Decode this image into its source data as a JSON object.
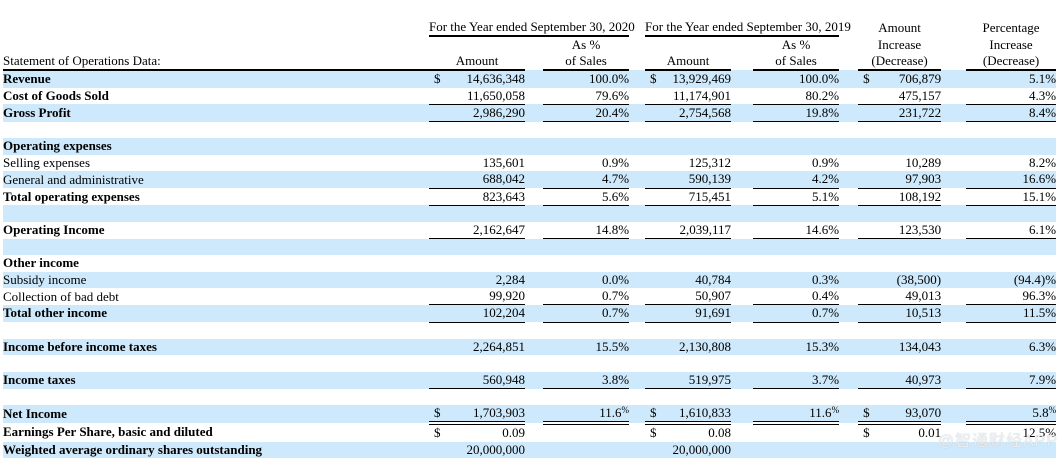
{
  "colors": {
    "stripe_blue": "#cde9fb",
    "text": "#000000",
    "rule": "#000000",
    "watermark_text_color": "#eceff1"
  },
  "watermark": "@智通财经APP",
  "header": {
    "label_header": "Statement of Operations Data:",
    "group_2020": "For the Year ended\nSeptember 30, 2020",
    "group_2019": "For the Year ended\nSeptember 30, 2019",
    "sub_amount": "Amount",
    "sub_as_pct": "As %",
    "sub_of_sales": "of Sales",
    "inc_amount_line1": "Amount",
    "inc_pct_line1": "Percentage",
    "inc_line2": "Increase",
    "inc_line3": "(Decrease)"
  },
  "table": {
    "column_keys": [
      "amount_2020",
      "pct_of_sales_2020",
      "amount_2019",
      "pct_of_sales_2019",
      "amount_increase_decrease",
      "pct_increase_decrease"
    ],
    "rows": [
      {
        "label": "Revenue",
        "bold": true,
        "bg": "blue",
        "u": "",
        "cells": [
          {
            "d": "$",
            "v": "14,636,348"
          },
          "100.0%",
          {
            "d": "$",
            "v": "13,929,469"
          },
          "100.0%",
          {
            "d": "$",
            "v": "706,879"
          },
          "5.1%"
        ]
      },
      {
        "label": "Cost of Goods Sold",
        "bold": true,
        "bg": "white",
        "u": "s",
        "cells": [
          "11,650,058",
          "79.6%",
          "11,174,901",
          "80.2%",
          "475,157",
          "4.3%"
        ]
      },
      {
        "label": "Gross Profit",
        "bold": true,
        "bg": "blue",
        "u": "s",
        "cells": [
          "2,986,290",
          "20.4%",
          "2,754,568",
          "19.8%",
          "231,722",
          "8.4%"
        ]
      },
      {
        "blank": true,
        "bg": "white"
      },
      {
        "label": "Operating expenses",
        "bold": true,
        "bg": "blue",
        "u": "",
        "cells": [
          "",
          "",
          "",
          "",
          "",
          ""
        ]
      },
      {
        "label": "Selling expenses",
        "bold": false,
        "bg": "white",
        "u": "",
        "cells": [
          "135,601",
          "0.9%",
          "125,312",
          "0.9%",
          "10,289",
          "8.2%"
        ]
      },
      {
        "label": "General and administrative",
        "bold": false,
        "bg": "blue",
        "u": "s",
        "cells": [
          "688,042",
          "4.7%",
          "590,139",
          "4.2%",
          "97,903",
          "16.6%"
        ]
      },
      {
        "label": "Total operating expenses",
        "bold": true,
        "bg": "white",
        "u": "s",
        "cells": [
          "823,643",
          "5.6%",
          "715,451",
          "5.1%",
          "108,192",
          "15.1%"
        ]
      },
      {
        "blank": true,
        "bg": "blue"
      },
      {
        "label": "Operating Income",
        "bold": true,
        "bg": "white",
        "u": "s",
        "cells": [
          "2,162,647",
          "14.8%",
          "2,039,117",
          "14.6%",
          "123,530",
          "6.1%"
        ]
      },
      {
        "blank": true,
        "bg": "blue"
      },
      {
        "label": "Other income",
        "bold": true,
        "bg": "white",
        "u": "",
        "cells": [
          "",
          "",
          "",
          "",
          "",
          ""
        ]
      },
      {
        "label": "Subsidy income",
        "bold": false,
        "bg": "blue",
        "u": "",
        "cells": [
          "2,284",
          "0.0%",
          "40,784",
          "0.3%",
          "(38,500)",
          "(94.4)%"
        ]
      },
      {
        "label": "Collection of bad debt",
        "bold": false,
        "bg": "white",
        "u": "s",
        "cells": [
          "99,920",
          "0.7%",
          "50,907",
          "0.4%",
          "49,013",
          "96.3%"
        ]
      },
      {
        "label": "Total other income",
        "bold": true,
        "bg": "blue",
        "u": "s",
        "cells": [
          "102,204",
          "0.7%",
          "91,691",
          "0.7%",
          "10,513",
          "11.5%"
        ]
      },
      {
        "blank": true,
        "bg": "white"
      },
      {
        "label": "Income before income taxes",
        "bold": true,
        "bg": "blue",
        "u": "",
        "cells": [
          "2,264,851",
          "15.5%",
          "2,130,808",
          "15.3%",
          "134,043",
          "6.3%"
        ]
      },
      {
        "blank": true,
        "bg": "white"
      },
      {
        "label": "Income taxes",
        "bold": true,
        "bg": "blue",
        "u": "s",
        "cells": [
          "560,948",
          "3.8%",
          "519,975",
          "3.7%",
          "40,973",
          "7.9%"
        ]
      },
      {
        "blank": true,
        "bg": "white"
      },
      {
        "label": "Net Income",
        "bold": true,
        "bg": "blue",
        "u": "d",
        "sup": true,
        "cells": [
          {
            "d": "$",
            "v": "1,703,903"
          },
          "11.6%",
          {
            "d": "$",
            "v": "1,610,833"
          },
          "11.6%",
          {
            "d": "$",
            "v": "93,070"
          },
          "5.8%"
        ]
      },
      {
        "label": "Earnings Per Share, basic and diluted",
        "bold": true,
        "bg": "white",
        "u": "",
        "cells": [
          {
            "d": "$",
            "v": "0.09"
          },
          "",
          {
            "d": "$",
            "v": "0.08"
          },
          "",
          {
            "d": "$",
            "v": "0.01"
          },
          "12.5%"
        ]
      },
      {
        "label": "Weighted average ordinary shares outstanding",
        "bold": true,
        "bg": "blue",
        "u": "",
        "cells": [
          "20,000,000",
          "",
          "20,000,000",
          "",
          "",
          ""
        ]
      }
    ]
  }
}
